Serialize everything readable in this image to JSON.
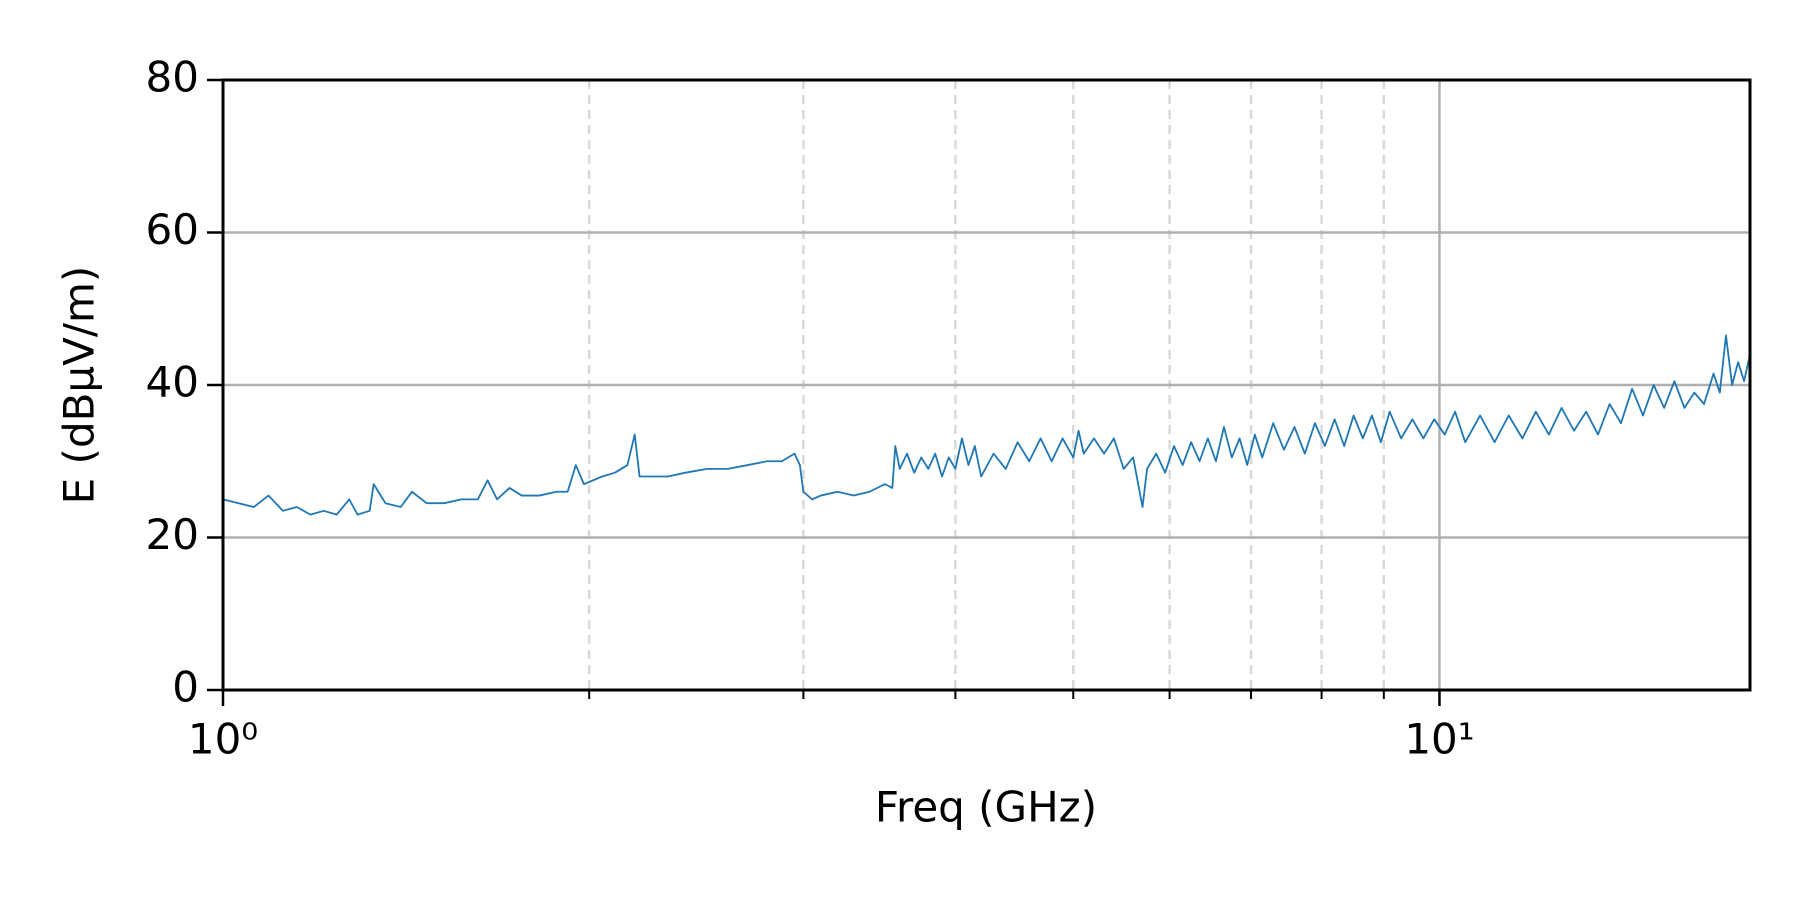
{
  "chart_data": {
    "type": "line",
    "xlabel": "Freq (GHz)",
    "ylabel": "E (dBµV/m)",
    "xscale": "log",
    "color": "#1f77b4",
    "grid": true,
    "xlim": [
      1,
      18
    ],
    "ylim": [
      0,
      80
    ],
    "xticks": [
      {
        "value": 1,
        "label": "10⁰"
      },
      {
        "value": 10,
        "label": "10¹"
      }
    ],
    "xminorticks": [
      2,
      3,
      4,
      5,
      6,
      7,
      8,
      9
    ],
    "yticks": [
      0,
      20,
      40,
      60,
      80
    ],
    "x": [
      1.0,
      1.03,
      1.06,
      1.09,
      1.12,
      1.15,
      1.18,
      1.21,
      1.24,
      1.27,
      1.29,
      1.32,
      1.33,
      1.36,
      1.4,
      1.43,
      1.47,
      1.52,
      1.57,
      1.62,
      1.65,
      1.68,
      1.72,
      1.76,
      1.82,
      1.88,
      1.92,
      1.95,
      1.98,
      2.05,
      2.1,
      2.15,
      2.18,
      2.2,
      2.25,
      2.32,
      2.4,
      2.5,
      2.6,
      2.7,
      2.8,
      2.88,
      2.95,
      2.98,
      3.0,
      3.05,
      3.1,
      3.2,
      3.3,
      3.4,
      3.5,
      3.55,
      3.57,
      3.6,
      3.65,
      3.7,
      3.75,
      3.8,
      3.85,
      3.9,
      3.95,
      4.0,
      4.05,
      4.1,
      4.15,
      4.2,
      4.3,
      4.4,
      4.5,
      4.6,
      4.7,
      4.8,
      4.9,
      5.0,
      5.05,
      5.1,
      5.2,
      5.3,
      5.4,
      5.5,
      5.6,
      5.7,
      5.75,
      5.85,
      5.95,
      6.05,
      6.15,
      6.25,
      6.35,
      6.45,
      6.55,
      6.65,
      6.75,
      6.85,
      6.95,
      7.05,
      7.15,
      7.3,
      7.45,
      7.6,
      7.75,
      7.9,
      8.05,
      8.2,
      8.35,
      8.5,
      8.65,
      8.8,
      8.95,
      9.1,
      9.3,
      9.5,
      9.7,
      9.9,
      10.1,
      10.3,
      10.5,
      10.8,
      11.1,
      11.4,
      11.7,
      12.0,
      12.3,
      12.6,
      12.9,
      13.2,
      13.5,
      13.8,
      14.1,
      14.4,
      14.7,
      15.0,
      15.3,
      15.6,
      15.9,
      16.2,
      16.5,
      16.8,
      17.0,
      17.2,
      17.4,
      17.6,
      17.8,
      18.0
    ],
    "values": [
      25,
      24.5,
      24,
      25.5,
      23.5,
      24,
      23,
      23.5,
      23,
      25,
      23,
      23.5,
      27,
      24.5,
      24,
      26,
      24.5,
      24.5,
      25,
      25,
      27.5,
      25,
      26.5,
      25.5,
      25.5,
      26,
      26,
      29.5,
      27,
      28,
      28.5,
      29.5,
      33.5,
      28,
      28,
      28,
      28.5,
      29,
      29,
      29.5,
      30,
      30,
      31,
      29.5,
      26,
      25,
      25.5,
      26,
      25.5,
      26,
      27,
      26.5,
      32,
      29,
      31,
      28.5,
      30.5,
      29,
      31,
      28,
      30.5,
      29,
      33,
      29.5,
      32,
      28,
      31,
      29,
      32.5,
      30,
      33,
      30,
      33,
      30.5,
      34,
      31,
      33,
      31,
      33,
      29,
      30.5,
      24,
      29,
      31,
      28.5,
      32,
      29.5,
      32.5,
      30,
      33,
      30,
      34.5,
      30.5,
      33,
      29.5,
      33.5,
      30.5,
      35,
      31.5,
      34.5,
      31,
      35,
      32,
      35.5,
      32,
      36,
      33,
      36,
      32.5,
      36.5,
      33,
      35.5,
      33,
      35.5,
      33.5,
      36.5,
      32.5,
      36,
      32.5,
      36,
      33,
      36.5,
      33.5,
      37,
      34,
      36.5,
      33.5,
      37.5,
      35,
      39.5,
      36,
      40,
      37,
      40.5,
      37,
      39,
      37.5,
      41.5,
      39,
      46.5,
      40,
      43,
      40.5,
      44
    ]
  }
}
